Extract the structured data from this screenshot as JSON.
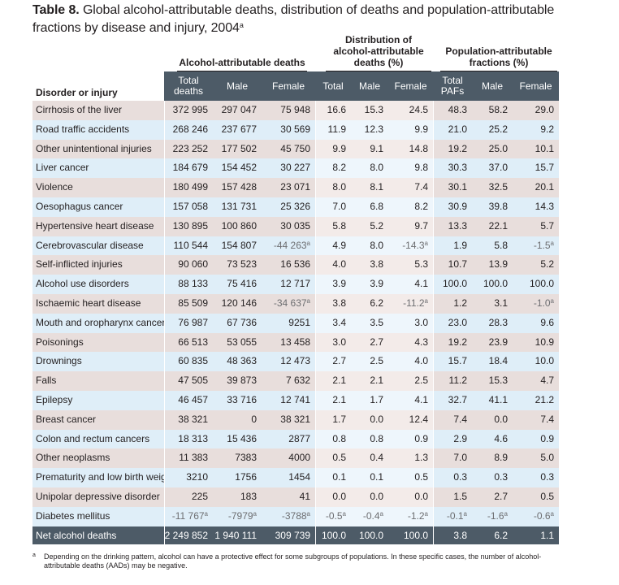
{
  "title": {
    "label": "Table 8.",
    "text": " Global alcohol-attributable deaths, distribution of deaths and population-attributable fractions by disease and injury, 2004",
    "sup": "a"
  },
  "groups": {
    "aad": "Alcohol-attributable deaths",
    "dist": "Distribution of alcohol-attributable deaths (%)",
    "paf": "Population-attributable fractions (%)"
  },
  "headers": {
    "disorder": "Disorder or injury",
    "aad_total": "Total deaths",
    "aad_male": "Male",
    "aad_female": "Female",
    "dist_total": "Total",
    "dist_male": "Male",
    "dist_female": "Female",
    "paf_total": "Total PAFs",
    "paf_male": "Male",
    "paf_female": "Female"
  },
  "rows": [
    {
      "name": "Cirrhosis of the liver",
      "v": [
        "372 995",
        "297 047",
        "75 948",
        "16.6",
        "15.3",
        "24.5",
        "48.3",
        "58.2",
        "29.0"
      ]
    },
    {
      "name": "Road traffic accidents",
      "v": [
        "268 246",
        "237 677",
        "30 569",
        "11.9",
        "12.3",
        "9.9",
        "21.0",
        "25.2",
        "9.2"
      ]
    },
    {
      "name": "Other unintentional injuries",
      "v": [
        "223 252",
        "177 502",
        "45 750",
        "9.9",
        "9.1",
        "14.8",
        "19.2",
        "25.0",
        "10.1"
      ]
    },
    {
      "name": "Liver cancer",
      "v": [
        "184 679",
        "154 452",
        "30 227",
        "8.2",
        "8.0",
        "9.8",
        "30.3",
        "37.0",
        "15.7"
      ]
    },
    {
      "name": "Violence",
      "v": [
        "180 499",
        "157 428",
        "23 071",
        "8.0",
        "8.1",
        "7.4",
        "30.1",
        "32.5",
        "20.1"
      ]
    },
    {
      "name": "Oesophagus cancer",
      "v": [
        "157 058",
        "131 731",
        "25 326",
        "7.0",
        "6.8",
        "8.2",
        "30.9",
        "39.8",
        "14.3"
      ]
    },
    {
      "name": "Hypertensive heart disease",
      "v": [
        "130 895",
        "100 860",
        "30 035",
        "5.8",
        "5.2",
        "9.7",
        "13.3",
        "22.1",
        "5.7"
      ]
    },
    {
      "name": "Cerebrovascular disease",
      "v": [
        "110 544",
        "154 807",
        "-44 263",
        "4.9",
        "8.0",
        "-14.3",
        "1.9",
        "5.8",
        "-1.5"
      ]
    },
    {
      "name": "Self-inflicted injuries",
      "v": [
        "90 060",
        "73 523",
        "16 536",
        "4.0",
        "3.8",
        "5.3",
        "10.7",
        "13.9",
        "5.2"
      ]
    },
    {
      "name": "Alcohol use disorders",
      "v": [
        "88 133",
        "75 416",
        "12 717",
        "3.9",
        "3.9",
        "4.1",
        "100.0",
        "100.0",
        "100.0"
      ]
    },
    {
      "name": "Ischaemic heart disease",
      "v": [
        "85 509",
        "120 146",
        "-34 637",
        "3.8",
        "6.2",
        "-11.2",
        "1.2",
        "3.1",
        "-1.0"
      ]
    },
    {
      "name": "Mouth and oropharynx cancers",
      "v": [
        "76 987",
        "67 736",
        "9251",
        "3.4",
        "3.5",
        "3.0",
        "23.0",
        "28.3",
        "9.6"
      ]
    },
    {
      "name": "Poisonings",
      "v": [
        "66 513",
        "53 055",
        "13 458",
        "3.0",
        "2.7",
        "4.3",
        "19.2",
        "23.9",
        "10.9"
      ]
    },
    {
      "name": "Drownings",
      "v": [
        "60 835",
        "48 363",
        "12 473",
        "2.7",
        "2.5",
        "4.0",
        "15.7",
        "18.4",
        "10.0"
      ]
    },
    {
      "name": "Falls",
      "v": [
        "47 505",
        "39 873",
        "7 632",
        "2.1",
        "2.1",
        "2.5",
        "11.2",
        "15.3",
        "4.7"
      ]
    },
    {
      "name": "Epilepsy",
      "v": [
        "46 457",
        "33 716",
        "12 741",
        "2.1",
        "1.7",
        "4.1",
        "32.7",
        "41.1",
        "21.2"
      ]
    },
    {
      "name": "Breast cancer",
      "v": [
        "38 321",
        "0",
        "38 321",
        "1.7",
        "0.0",
        "12.4",
        "7.4",
        "0.0",
        "7.4"
      ]
    },
    {
      "name": "Colon and rectum cancers",
      "v": [
        "18 313",
        "15 436",
        "2877",
        "0.8",
        "0.8",
        "0.9",
        "2.9",
        "4.6",
        "0.9"
      ]
    },
    {
      "name": "Other neoplasms",
      "v": [
        "11 383",
        "7383",
        "4000",
        "0.5",
        "0.4",
        "1.3",
        "7.0",
        "8.9",
        "5.0"
      ]
    },
    {
      "name": "Prematurity and low birth weight",
      "v": [
        "3210",
        "1756",
        "1454",
        "0.1",
        "0.1",
        "0.5",
        "0.3",
        "0.3",
        "0.3"
      ]
    },
    {
      "name": "Unipolar depressive disorder",
      "v": [
        "225",
        "183",
        "41",
        "0.0",
        "0.0",
        "0.0",
        "1.5",
        "2.7",
        "0.5"
      ]
    },
    {
      "name": "Diabetes mellitus",
      "v": [
        "-11 767",
        "-7979",
        "-3788",
        "-0.5",
        "-0.4",
        "-1.2",
        "-0.1",
        "-1.6",
        "-0.6"
      ]
    }
  ],
  "total_row": {
    "name": "Net alcohol deaths",
    "v": [
      "2 249 852",
      "1 940 111",
      "309 739",
      "100.0",
      "100.0",
      "100.0",
      "3.8",
      "6.2",
      "1.1"
    ]
  },
  "superscript_mark": "a",
  "footnote": {
    "mark": "a",
    "text": "Depending on the drinking pattern, alcohol can have a protective effect for some subgroups of populations. In these specific cases, the number of alcohol-attributable deaths (AADs) may be negative."
  },
  "colors": {
    "header_dark": "#4d5b67",
    "row_pink": "#e8dedc",
    "row_blue": "#dfeef8",
    "negative_text": "#6d6e71"
  }
}
